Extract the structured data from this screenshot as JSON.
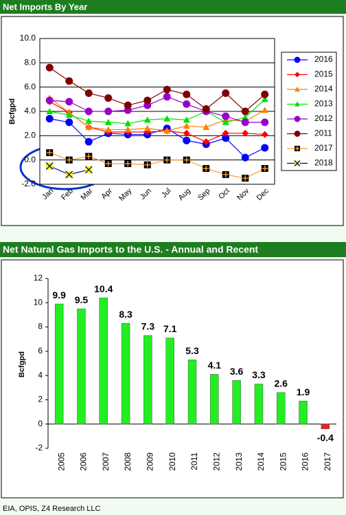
{
  "chart_data": [
    {
      "type": "line",
      "title": "Net Imports By Year",
      "y_label": "Bcfgpd",
      "categories": [
        "Jan",
        "Feb",
        "Mar",
        "Apr",
        "May",
        "Jun",
        "Jul",
        "Aug",
        "Sep",
        "Oct",
        "Nov",
        "Dec"
      ],
      "ylim": [
        -2,
        10
      ],
      "yticks": [
        {
          "value": -2,
          "label": "-2.0"
        },
        {
          "value": 0,
          "label": "0.0"
        },
        {
          "value": 2,
          "label": "2.0"
        },
        {
          "value": 4,
          "label": "4.0"
        },
        {
          "value": 6,
          "label": "6.0"
        },
        {
          "value": 8,
          "label": "8.0"
        },
        {
          "value": 10,
          "label": "10.0"
        }
      ],
      "grid": true,
      "legend": "right",
      "series": [
        {
          "name": "2016",
          "color": "#0000ff",
          "marker": "circle",
          "values": [
            3.4,
            3.1,
            1.5,
            2.2,
            2.1,
            2.1,
            2.6,
            1.6,
            1.3,
            1.8,
            0.2,
            1.0
          ]
        },
        {
          "name": "2015",
          "color": "#ff0000",
          "marker": "diamond",
          "values": [
            4.8,
            3.9,
            2.7,
            2.3,
            2.3,
            2.3,
            2.4,
            2.2,
            1.5,
            2.2,
            2.2,
            2.1
          ]
        },
        {
          "name": "2014",
          "color": "#ff8000",
          "marker": "triangle",
          "values": [
            5.1,
            3.9,
            2.7,
            2.5,
            2.5,
            2.6,
            2.4,
            2.8,
            2.7,
            3.3,
            3.2,
            4.1
          ]
        },
        {
          "name": "2013",
          "color": "#00e000",
          "marker": "triangle",
          "values": [
            4.0,
            3.7,
            3.2,
            3.1,
            3.0,
            3.3,
            3.4,
            3.3,
            4.0,
            3.1,
            3.5,
            5.0
          ]
        },
        {
          "name": "2012",
          "color": "#9900cc",
          "marker": "circle",
          "values": [
            4.9,
            4.8,
            4.0,
            4.0,
            4.1,
            4.5,
            5.2,
            4.6,
            4.0,
            3.6,
            3.1,
            3.1
          ]
        },
        {
          "name": "2011",
          "color": "#800000",
          "marker": "circle",
          "values": [
            7.6,
            6.5,
            5.5,
            5.1,
            4.5,
            4.9,
            5.8,
            5.4,
            4.2,
            5.5,
            4.0,
            5.4
          ]
        },
        {
          "name": "2017",
          "color": "#000000",
          "line_color": "#ff9933",
          "marker": "square-plus",
          "values": [
            0.6,
            0.0,
            0.3,
            -0.3,
            -0.3,
            -0.4,
            0.0,
            0.0,
            -0.7,
            -1.2,
            -1.5,
            -0.7
          ]
        },
        {
          "name": "2018",
          "color": "#ffff00",
          "line_color": "#000099",
          "marker": "x",
          "values": [
            -0.5,
            -1.2,
            -0.8,
            null,
            null,
            null,
            null,
            null,
            null,
            null,
            null,
            null
          ]
        }
      ]
    },
    {
      "type": "bar",
      "title": "Net Natural Gas Imports to the U.S. -  Annual and Recent",
      "y_label": "Bcfgpd",
      "categories": [
        "2005",
        "2006",
        "2007",
        "2008",
        "2009",
        "2010",
        "2011",
        "2012",
        "2013",
        "2014",
        "2015",
        "2016",
        "2017"
      ],
      "values": [
        9.9,
        9.5,
        10.4,
        8.3,
        7.3,
        7.1,
        5.3,
        4.1,
        3.6,
        3.3,
        2.6,
        1.9,
        -0.4
      ],
      "colors": [
        "#22ee22",
        "#22ee22",
        "#22ee22",
        "#22ee22",
        "#22ee22",
        "#22ee22",
        "#22ee22",
        "#22ee22",
        "#22ee22",
        "#22ee22",
        "#22ee22",
        "#22ee22",
        "#ee2222"
      ],
      "ylim": [
        -2,
        12
      ],
      "yticks": [
        -2,
        0,
        2,
        4,
        6,
        8,
        10,
        12
      ],
      "grid": false
    }
  ],
  "source": "EIA, OPIS, Z4 Research LLC"
}
